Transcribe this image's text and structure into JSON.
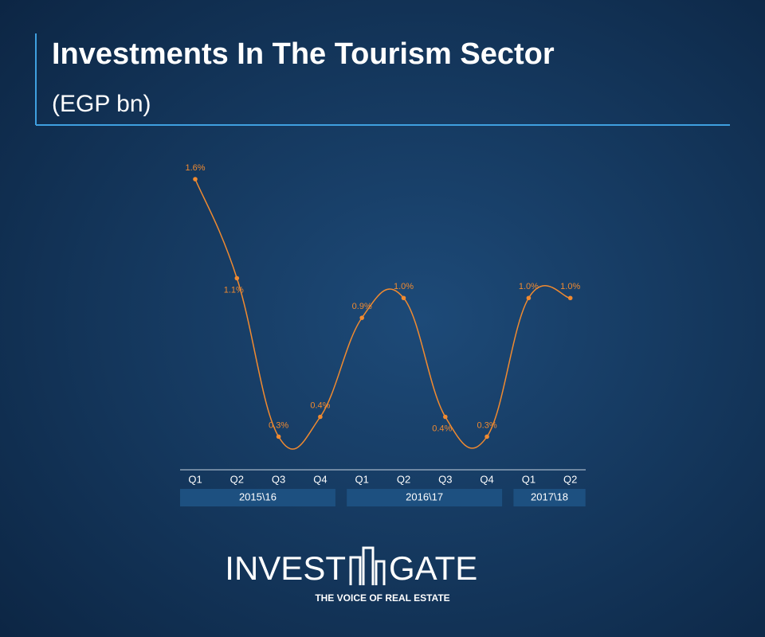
{
  "chart_data": {
    "type": "line",
    "title": "Investments In The Tourism Sector",
    "subtitle": "(EGP bn)",
    "groups": [
      {
        "name": "2015\\16",
        "categories": [
          "Q1",
          "Q2",
          "Q3",
          "Q4"
        ]
      },
      {
        "name": "2016\\17",
        "categories": [
          "Q1",
          "Q2",
          "Q3",
          "Q4"
        ]
      },
      {
        "name": "2017\\18",
        "categories": [
          "Q1",
          "Q2"
        ]
      }
    ],
    "color": "#f08a30",
    "values": [
      1.6,
      1.1,
      0.3,
      0.4,
      0.9,
      1.0,
      0.4,
      0.3,
      1.0,
      1.0
    ],
    "value_labels": [
      "1.6%",
      "1.1%",
      "0.3%",
      "0.4%",
      "0.9%",
      "1.0%",
      "0.4%",
      "0.3%",
      "1.0%",
      "1.0%"
    ]
  },
  "logo": {
    "left": "INVEST",
    "right": "GATE",
    "tagline": "THE VOICE OF REAL ESTATE"
  }
}
